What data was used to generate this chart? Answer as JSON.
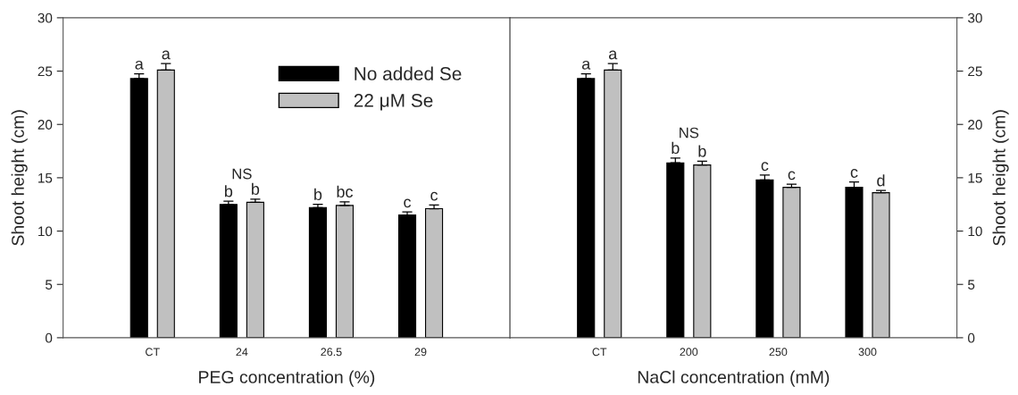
{
  "chart_data": [
    {
      "type": "bar",
      "xlabel": "PEG concentration (%)",
      "ylabel": "Shoot height (cm)",
      "categories": [
        "CT",
        "24",
        "26.5",
        "29"
      ],
      "ylim": [
        0,
        30
      ],
      "yticks": [
        0,
        5,
        10,
        15,
        20,
        25,
        30
      ],
      "legend": "top right",
      "grid": false,
      "series": [
        {
          "name": "No added Se",
          "color": "#000000",
          "values": [
            24.3,
            12.5,
            12.2,
            11.5
          ],
          "errors": [
            0.45,
            0.3,
            0.3,
            0.3
          ],
          "value_labels": [
            "a",
            "b",
            "b",
            "c"
          ]
        },
        {
          "name": "22 μM Se",
          "color": "#c0c0c0",
          "values": [
            25.1,
            12.7,
            12.4,
            12.1
          ],
          "errors": [
            0.6,
            0.3,
            0.35,
            0.35
          ],
          "value_labels": [
            "a",
            "b",
            "bc",
            "c"
          ]
        }
      ],
      "annotations": [
        "NS"
      ]
    },
    {
      "type": "bar",
      "xlabel": "NaCl concentration (mM)",
      "ylabel": "Shoot height (cm)",
      "categories": [
        "CT",
        "200",
        "250",
        "300"
      ],
      "ylim": [
        0,
        30
      ],
      "yticks": [
        0,
        5,
        10,
        15,
        20,
        25,
        30
      ],
      "legend": false,
      "grid": false,
      "series": [
        {
          "color": "#000000",
          "values": [
            24.3,
            16.4,
            14.8,
            14.1
          ],
          "errors": [
            0.45,
            0.45,
            0.45,
            0.5
          ],
          "value_labels": [
            "a",
            "b",
            "c",
            "c"
          ]
        },
        {
          "color": "#c0c0c0",
          "values": [
            25.1,
            16.2,
            14.1,
            13.6
          ],
          "errors": [
            0.6,
            0.35,
            0.3,
            0.2
          ],
          "value_labels": [
            "a",
            "b",
            "c",
            "d"
          ]
        }
      ],
      "annotations": [
        "NS"
      ]
    }
  ]
}
